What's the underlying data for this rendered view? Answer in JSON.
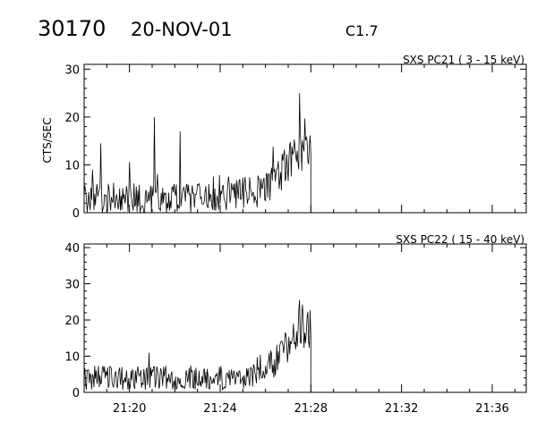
{
  "header": {
    "event_id": "30170",
    "date": "20-NOV-01",
    "flare_class": "C1.7"
  },
  "chart_data": [
    {
      "type": "line",
      "title": "SXS PC21  (  3 - 15 keV)",
      "ylabel": "CTS/SEC",
      "xlim": [
        "21:18:00",
        "21:37:30"
      ],
      "ylim": [
        0,
        31
      ],
      "yticks": [
        0,
        10,
        20,
        30
      ],
      "xticks": [
        "21:20",
        "21:24",
        "21:28",
        "21:32",
        "21:36"
      ],
      "data_end": "21:28:00",
      "series": [
        {
          "x": [
            "21:18",
            "21:19",
            "21:20",
            "21:21",
            "21:22",
            "21:23",
            "21:24",
            "21:25",
            "21:26",
            "21:26:30",
            "21:27",
            "21:27:15",
            "21:27:30",
            "21:27:45",
            "21:28"
          ],
          "values": [
            3,
            3,
            3,
            3,
            3,
            3,
            3,
            4,
            5,
            7,
            10,
            12,
            14,
            15,
            14
          ],
          "spikes": [
            {
              "x": "21:18:45",
              "value": 14.5
            },
            {
              "x": "21:21:07",
              "value": 20
            },
            {
              "x": "21:22:15",
              "value": 17
            },
            {
              "x": "21:27:30",
              "value": 25
            }
          ]
        }
      ]
    },
    {
      "type": "line",
      "title": "SXS PC22  ( 15 - 40 keV)",
      "ylabel": "",
      "xlim": [
        "21:18:00",
        "21:37:30"
      ],
      "ylim": [
        0,
        41
      ],
      "yticks": [
        0,
        10,
        20,
        30,
        40
      ],
      "xticks": [
        "21:20",
        "21:24",
        "21:28",
        "21:32",
        "21:36"
      ],
      "data_end": "21:28:00",
      "series": [
        {
          "x": [
            "21:18",
            "21:19",
            "21:20",
            "21:21",
            "21:22",
            "21:23",
            "21:24",
            "21:25",
            "21:26",
            "21:26:30",
            "21:27",
            "21:27:15",
            "21:27:30",
            "21:27:45",
            "21:28"
          ],
          "values": [
            4,
            4,
            4,
            4,
            4,
            4,
            4,
            4,
            6,
            9,
            13,
            16,
            18,
            19,
            17
          ],
          "spikes": [
            {
              "x": "21:27:30",
              "value": 25.5
            }
          ]
        }
      ]
    }
  ]
}
